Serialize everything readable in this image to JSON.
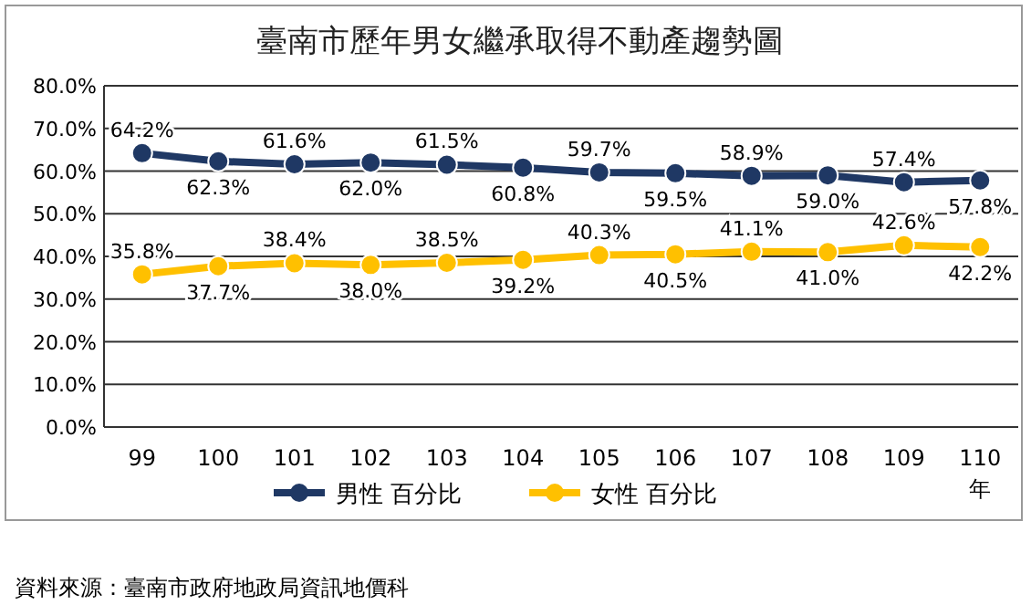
{
  "chart_data": {
    "type": "line",
    "title": "臺南市歷年男女繼承取得不動產趨勢圖",
    "categories": [
      "99",
      "100",
      "101",
      "102",
      "103",
      "104",
      "105",
      "106",
      "107",
      "108",
      "109",
      "110"
    ],
    "xlabel": "年",
    "ylim": [
      0,
      80
    ],
    "yticks": [
      {
        "value": 0,
        "label": "0.0%"
      },
      {
        "value": 10,
        "label": "10.0%"
      },
      {
        "value": 20,
        "label": "20.0%"
      },
      {
        "value": 30,
        "label": "30.0%"
      },
      {
        "value": 40,
        "label": "40.0%"
      },
      {
        "value": 50,
        "label": "50.0%"
      },
      {
        "value": 60,
        "label": "60.0%"
      },
      {
        "value": 70,
        "label": "70.0%"
      },
      {
        "value": 80,
        "label": "80.0%"
      }
    ],
    "grid": "y",
    "legend": "bottom",
    "marker": "circle",
    "line_style": "solid",
    "series": [
      {
        "name": "男性 百分比",
        "color": "#1f3864",
        "values": [
          64.2,
          62.3,
          61.6,
          62.0,
          61.5,
          60.8,
          59.7,
          59.5,
          58.9,
          59.0,
          57.4,
          57.8
        ],
        "value_labels": [
          "64.2%",
          "62.3%",
          "61.6%",
          "62.0%",
          "61.5%",
          "60.8%",
          "59.7%",
          "59.5%",
          "58.9%",
          "59.0%",
          "57.4%",
          "57.8%"
        ]
      },
      {
        "name": "女性 百分比",
        "color": "#ffc000",
        "values": [
          35.8,
          37.7,
          38.4,
          38.0,
          38.5,
          39.2,
          40.3,
          40.5,
          41.1,
          41.0,
          42.6,
          42.2
        ],
        "value_labels": [
          "35.8%",
          "37.7%",
          "38.4%",
          "38.0%",
          "38.5%",
          "39.2%",
          "40.3%",
          "40.5%",
          "41.1%",
          "41.0%",
          "42.6%",
          "42.2%"
        ]
      }
    ],
    "annotations": [
      "資料來源：臺南市政府地政局資訊地價科"
    ]
  }
}
